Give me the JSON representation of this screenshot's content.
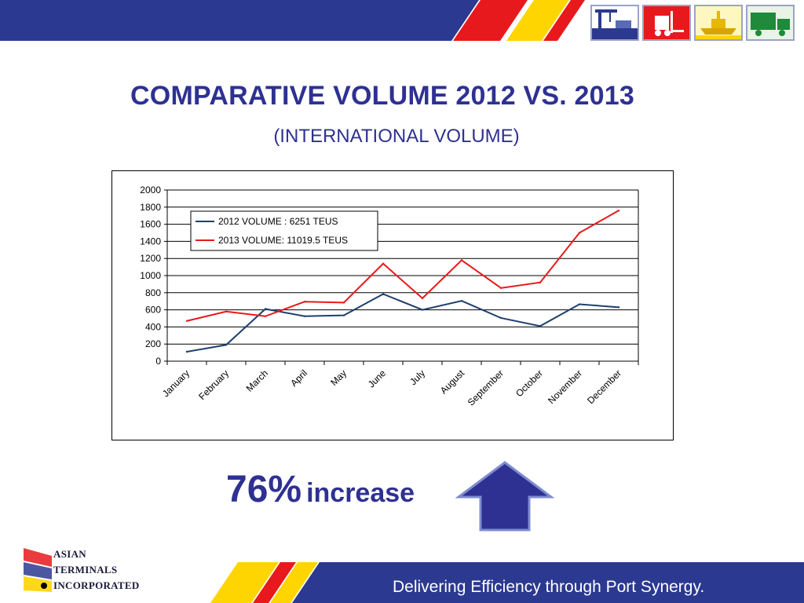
{
  "header": {
    "title": "COMPARATIVE VOLUME 2012 VS. 2013",
    "subtitle": "(INTERNATIONAL VOLUME)"
  },
  "icons": [
    "port-crane-icon",
    "forklift-icon",
    "ship-icon",
    "truck-icon"
  ],
  "chart_data": {
    "type": "line",
    "categories": [
      "January",
      "February",
      "March",
      "April",
      "May",
      "June",
      "July",
      "August",
      "September",
      "October",
      "November",
      "December"
    ],
    "series": [
      {
        "name": "2012 VOLUME : 6251 TEUS",
        "color": "#1f3f6e",
        "values": [
          110,
          190,
          610,
          525,
          535,
          785,
          600,
          705,
          505,
          410,
          665,
          630
        ]
      },
      {
        "name": "2013 VOLUME: 11019.5 TEUS",
        "color": "#e8191c",
        "values": [
          470,
          580,
          525,
          695,
          685,
          1140,
          735,
          1180,
          855,
          920,
          1500,
          1760
        ]
      }
    ],
    "ylim": [
      0,
      2000
    ],
    "yticks": [
      "0",
      "200",
      "400",
      "600",
      "800",
      "1000",
      "1200",
      "1400",
      "1600",
      "1800",
      "2000"
    ],
    "grid": true,
    "legend": "top-left"
  },
  "callout": {
    "percent": "76%",
    "word": "increase",
    "color": "#2e3192"
  },
  "footer": {
    "tagline": "Delivering Efficiency through Port Synergy.",
    "logo_lines": [
      "ASIAN",
      "TERMINALS",
      "INCORPORATED"
    ]
  },
  "colors": {
    "navy": "#2e3192",
    "band_blue": "#2b3990",
    "red": "#e8191c",
    "yellow": "#ffd500"
  }
}
